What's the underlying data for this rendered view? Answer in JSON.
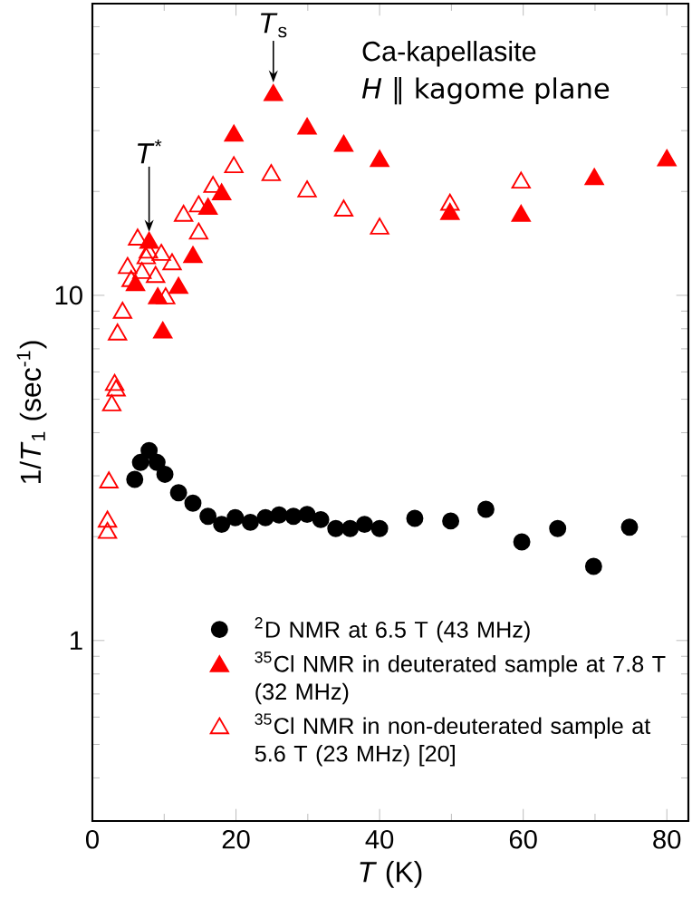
{
  "chart_data": {
    "type": "scatter",
    "xlabel": "*T* (K)",
    "ylabel": "1/*T*$_{1}$ (sec$^{-1}$)",
    "log": "y",
    "xlim": [
      0,
      83
    ],
    "ylim": [
      0.3,
      70
    ],
    "xticks": [
      0,
      {
        "value": 10,
        "label": null
      },
      20,
      {
        "value": 30,
        "label": null
      },
      40,
      {
        "value": 50,
        "label": null
      },
      60,
      {
        "value": 70,
        "label": null
      },
      80
    ],
    "yticks": [
      {
        "value": 0.4,
        "label": null
      },
      {
        "value": 0.5,
        "label": null
      },
      {
        "value": 0.6,
        "label": null
      },
      {
        "value": 0.7,
        "label": null
      },
      {
        "value": 0.8,
        "label": null
      },
      {
        "value": 0.9,
        "label": null
      },
      1,
      {
        "value": 2,
        "label": null
      },
      {
        "value": 3,
        "label": null
      },
      {
        "value": 4,
        "label": null
      },
      {
        "value": 5,
        "label": null
      },
      {
        "value": 6,
        "label": null
      },
      {
        "value": 7,
        "label": null
      },
      {
        "value": 8,
        "label": null
      },
      {
        "value": 9,
        "label": null
      },
      10,
      {
        "value": 20,
        "label": null
      },
      {
        "value": 30,
        "label": null
      },
      {
        "value": 40,
        "label": null
      },
      {
        "value": 50,
        "label": null
      },
      {
        "value": 60,
        "label": null
      }
    ],
    "legend": "bottom",
    "grid": false,
    "annotations": [
      "Ca-kapellasite",
      "*H* ∥ kagome plane",
      {
        "text": "*T*$^{*}$",
        "x": 7.9,
        "y": 14.2
      },
      {
        "text": "*T*$_{s}$",
        "x": 25.2,
        "y": 38
      }
    ],
    "series": [
      {
        "name": "$^{2}$D NMR at 6.5 T (43 MHz)",
        "color": "#000000",
        "marker": "circle",
        "x": [
          5.9,
          6.7,
          7.9,
          9.0,
          10.1,
          12.0,
          14.0,
          16.1,
          18.0,
          19.9,
          22.0,
          24.1,
          26.0,
          28.0,
          29.9,
          31.8,
          33.9,
          35.9,
          37.9,
          40,
          44.9,
          49.9,
          54.8,
          59.8,
          64.8,
          69.8,
          74.8
        ],
        "values": [
          2.93,
          3.28,
          3.55,
          3.28,
          3.03,
          2.68,
          2.5,
          2.29,
          2.17,
          2.27,
          2.2,
          2.27,
          2.31,
          2.29,
          2.32,
          2.24,
          2.11,
          2.11,
          2.17,
          2.11,
          2.26,
          2.22,
          2.4,
          1.93,
          2.11,
          1.64,
          2.13
        ]
      },
      {
        "name": "$^{35}$Cl NMR in deuterated sample at 7.8 T (32 MHz)",
        "color": "#ff0000",
        "marker": "triangle",
        "x": [
          6.0,
          7.9,
          9.1,
          9.8,
          12.0,
          14.0,
          16.1,
          18.0,
          19.7,
          25.2,
          29.9,
          35,
          40,
          49.8,
          59.7,
          69.9,
          80
        ],
        "values": [
          10.7,
          14.2,
          9.8,
          7.8,
          10.5,
          12.9,
          17.8,
          19.6,
          29,
          38,
          30.4,
          27.1,
          24.5,
          17.2,
          17.0,
          21.7,
          24.6
        ]
      },
      {
        "name": "$^{35}$Cl NMR in non-deuterated sample at 5.6 T (23 MHz) [20]",
        "color": "#ff0000",
        "marker": "triangle-open",
        "x": [
          2.1,
          2.1,
          2.3,
          2.7,
          3.1,
          3.3,
          3.5,
          4.2,
          4.9,
          5.4,
          6.3,
          6.9,
          7.5,
          7.8,
          8.8,
          9.6,
          10.2,
          11.1,
          12.7,
          14.8,
          14.8,
          16.8,
          19.7,
          24.9,
          29.9,
          35,
          40,
          49.8,
          59.7
        ],
        "values": [
          2.05,
          2.21,
          2.87,
          4.8,
          5.5,
          5.3,
          7.7,
          8.9,
          12.0,
          11.0,
          14.5,
          11.6,
          12.8,
          13.3,
          11.3,
          13.1,
          9.8,
          12.3,
          17.0,
          15.1,
          18.1,
          20.6,
          23.5,
          22.3,
          20,
          17.6,
          15.6,
          18.3,
          21.2
        ]
      }
    ]
  }
}
